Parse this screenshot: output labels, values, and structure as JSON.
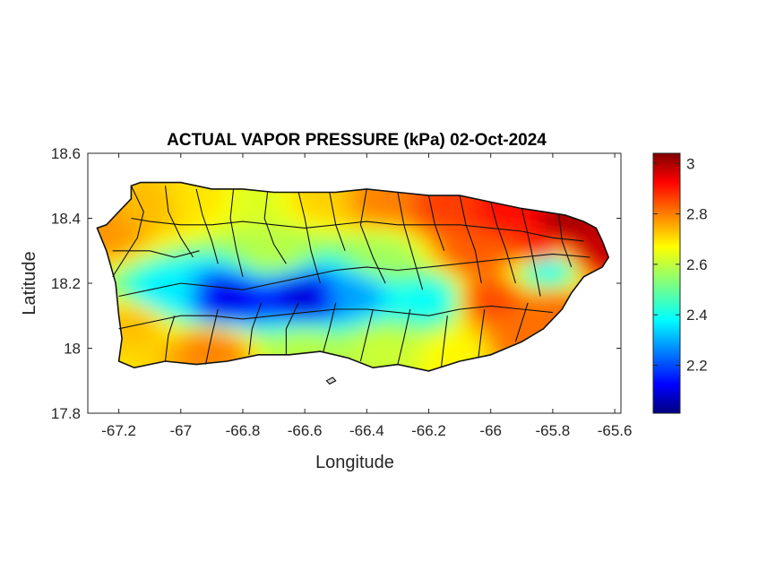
{
  "chart_data": {
    "type": "heatmap",
    "title": "ACTUAL VAPOR PRESSURE (kPa) 02-Oct-2024",
    "xlabel": "Longitude",
    "ylabel": "Latitude",
    "xlim": [
      -67.3,
      -65.58
    ],
    "ylim": [
      17.8,
      18.6
    ],
    "x_ticks": [
      -67.2,
      -67,
      -66.8,
      -66.6,
      -66.4,
      -66.2,
      -66,
      -65.8,
      -65.6
    ],
    "x_tick_labels": [
      "-67.2",
      "-67",
      "-66.8",
      "-66.6",
      "-66.4",
      "-66.2",
      "-66",
      "-65.8",
      "-65.6"
    ],
    "y_ticks": [
      17.8,
      18,
      18.2,
      18.4,
      18.6
    ],
    "y_tick_labels": [
      "17.8",
      "18",
      "18.2",
      "18.4",
      "18.6"
    ],
    "colormap": "jet",
    "colorbar": {
      "range": [
        2.01,
        3.04
      ],
      "ticks": [
        2.2,
        2.4,
        2.6,
        2.8,
        3
      ],
      "tick_labels": [
        "2.2",
        "2.4",
        "2.6",
        "2.8",
        "3"
      ]
    },
    "grid": false,
    "region": "Puerto Rico",
    "field_centers": [
      {
        "lon": -67.25,
        "lat": 18.36,
        "value": 2.76
      },
      {
        "lon": -67.1,
        "lat": 18.45,
        "value": 2.72
      },
      {
        "lon": -66.95,
        "lat": 18.47,
        "value": 2.68
      },
      {
        "lon": -66.75,
        "lat": 18.46,
        "value": 2.62
      },
      {
        "lon": -66.55,
        "lat": 18.47,
        "value": 2.7
      },
      {
        "lon": -66.35,
        "lat": 18.46,
        "value": 2.78
      },
      {
        "lon": -66.15,
        "lat": 18.44,
        "value": 2.85
      },
      {
        "lon": -65.95,
        "lat": 18.42,
        "value": 2.9
      },
      {
        "lon": -65.75,
        "lat": 18.39,
        "value": 3.0
      },
      {
        "lon": -65.65,
        "lat": 18.3,
        "value": 2.97
      },
      {
        "lon": -65.85,
        "lat": 18.3,
        "value": 2.88
      },
      {
        "lon": -66.05,
        "lat": 18.3,
        "value": 2.82
      },
      {
        "lon": -66.0,
        "lat": 18.15,
        "value": 2.84
      },
      {
        "lon": -65.8,
        "lat": 18.12,
        "value": 2.8
      },
      {
        "lon": -65.82,
        "lat": 18.25,
        "value": 2.4
      },
      {
        "lon": -66.2,
        "lat": 18.15,
        "value": 2.4
      },
      {
        "lon": -66.85,
        "lat": 18.15,
        "value": 2.12
      },
      {
        "lon": -66.6,
        "lat": 18.16,
        "value": 2.1
      },
      {
        "lon": -66.45,
        "lat": 18.17,
        "value": 2.3
      },
      {
        "lon": -67.05,
        "lat": 18.17,
        "value": 2.38
      },
      {
        "lon": -66.7,
        "lat": 18.3,
        "value": 2.58
      },
      {
        "lon": -66.35,
        "lat": 18.28,
        "value": 2.56
      },
      {
        "lon": -67.15,
        "lat": 18.08,
        "value": 2.72
      },
      {
        "lon": -66.9,
        "lat": 18.0,
        "value": 2.78
      },
      {
        "lon": -66.6,
        "lat": 18.0,
        "value": 2.58
      },
      {
        "lon": -66.35,
        "lat": 18.0,
        "value": 2.6
      },
      {
        "lon": -66.1,
        "lat": 17.98,
        "value": 2.66
      },
      {
        "lon": -65.9,
        "lat": 18.02,
        "value": 2.8
      }
    ]
  }
}
